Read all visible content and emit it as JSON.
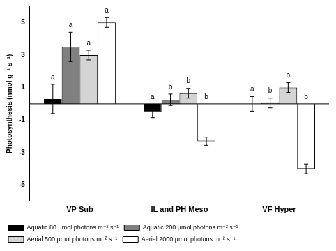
{
  "chart_data": {
    "type": "bar",
    "y_label": "Photosynthesis (nmol g⁻¹ s⁻¹)",
    "categories": [
      "VP Sub",
      "IL and PH Meso",
      "VF Hyper"
    ],
    "series": [
      {
        "name": "Aquatic 80 µmol photons m⁻² s⁻¹",
        "color": "#000000",
        "values": [
          0.3,
          -0.5,
          0.0
        ],
        "errors": [
          0.9,
          0.35,
          0.45
        ],
        "letters": [
          "a",
          "a",
          "a"
        ]
      },
      {
        "name": "Aquatic 200 µmol photons m⁻² s⁻¹",
        "color": "#808080",
        "values": [
          3.5,
          0.25,
          0.05
        ],
        "errors": [
          0.9,
          0.35,
          0.3
        ],
        "letters": [
          "a",
          "b",
          "b"
        ]
      },
      {
        "name": "Aerial 500 µmol photons m⁻² s⁻¹",
        "color": "#d4d4d4",
        "values": [
          3.0,
          0.65,
          1.0
        ],
        "errors": [
          0.3,
          0.3,
          0.3
        ],
        "letters": [
          "a",
          "b",
          "b"
        ]
      },
      {
        "name": "Aerial 2000 µmol photons m⁻² s⁻¹",
        "color": "#ffffff",
        "values": [
          5.0,
          -2.3,
          -4.0
        ],
        "errors": [
          0.3,
          0.25,
          0.3
        ],
        "letters": [
          "a",
          "b",
          "b"
        ]
      }
    ],
    "ylim": [
      -6,
      6
    ],
    "yticks": [
      -5,
      -3,
      -1,
      1,
      3,
      5
    ],
    "grid": false,
    "legend": "bottom"
  }
}
